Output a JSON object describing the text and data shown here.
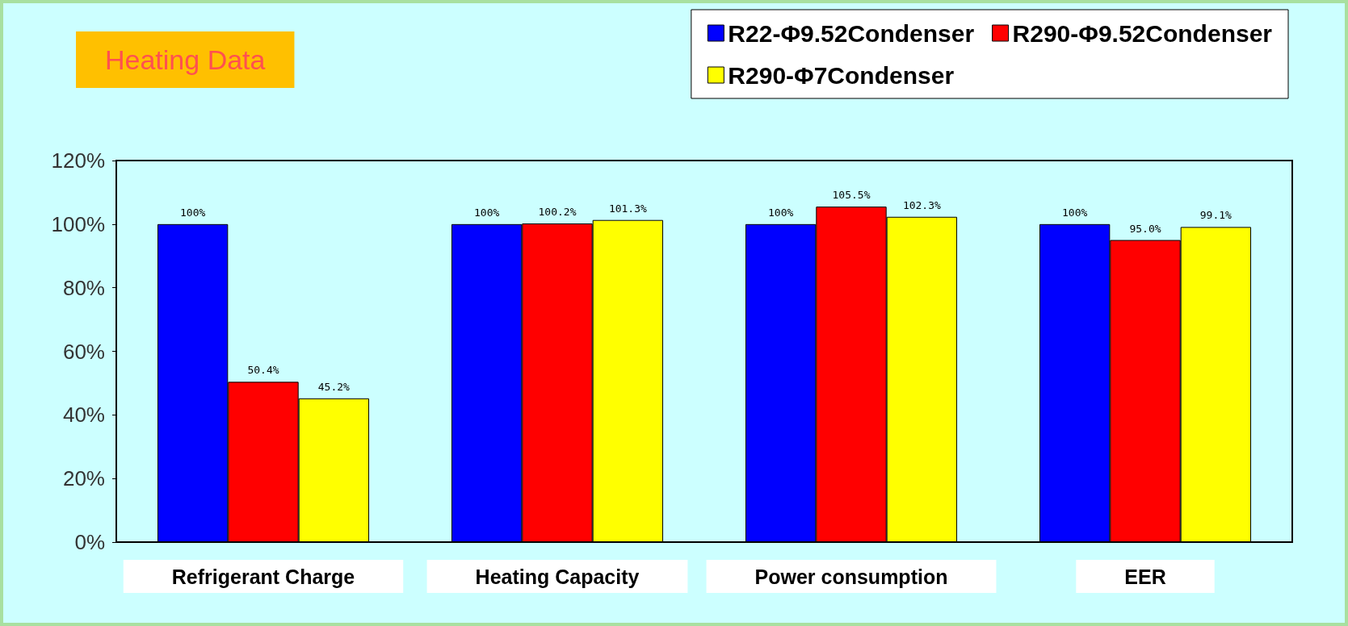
{
  "chart_data": {
    "type": "bar",
    "title": "Heating Data",
    "categories": [
      "Refrigerant Charge",
      "Heating Capacity",
      "Power consumption",
      "EER"
    ],
    "series": [
      {
        "name": "R22-Φ9.52Condenser",
        "color": "#0000ff",
        "values": [
          100,
          100,
          100,
          100
        ],
        "value_labels": [
          "100%",
          "100%",
          "100%",
          "100%"
        ]
      },
      {
        "name": "R290-Φ9.52Condenser",
        "color": "#ff0000",
        "values": [
          50.4,
          100.2,
          105.5,
          95.0
        ],
        "value_labels": [
          "50.4%",
          "100.2%",
          "105.5%",
          "95.0%"
        ]
      },
      {
        "name": "R290-Φ7Condenser",
        "color": "#ffff00",
        "values": [
          45.2,
          101.3,
          102.3,
          99.1
        ],
        "value_labels": [
          "45.2%",
          "101.3%",
          "102.3%",
          "99.1%"
        ]
      }
    ],
    "ylim": [
      0,
      120
    ],
    "yticks": [
      {
        "value": 0,
        "label": "0%"
      },
      {
        "value": 20,
        "label": "20%"
      },
      {
        "value": 40,
        "label": "40%"
      },
      {
        "value": 60,
        "label": "60%"
      },
      {
        "value": 80,
        "label": "80%"
      },
      {
        "value": 100,
        "label": "100%"
      },
      {
        "value": 120,
        "label": "120%"
      }
    ],
    "grid": false,
    "legend": "top right"
  }
}
